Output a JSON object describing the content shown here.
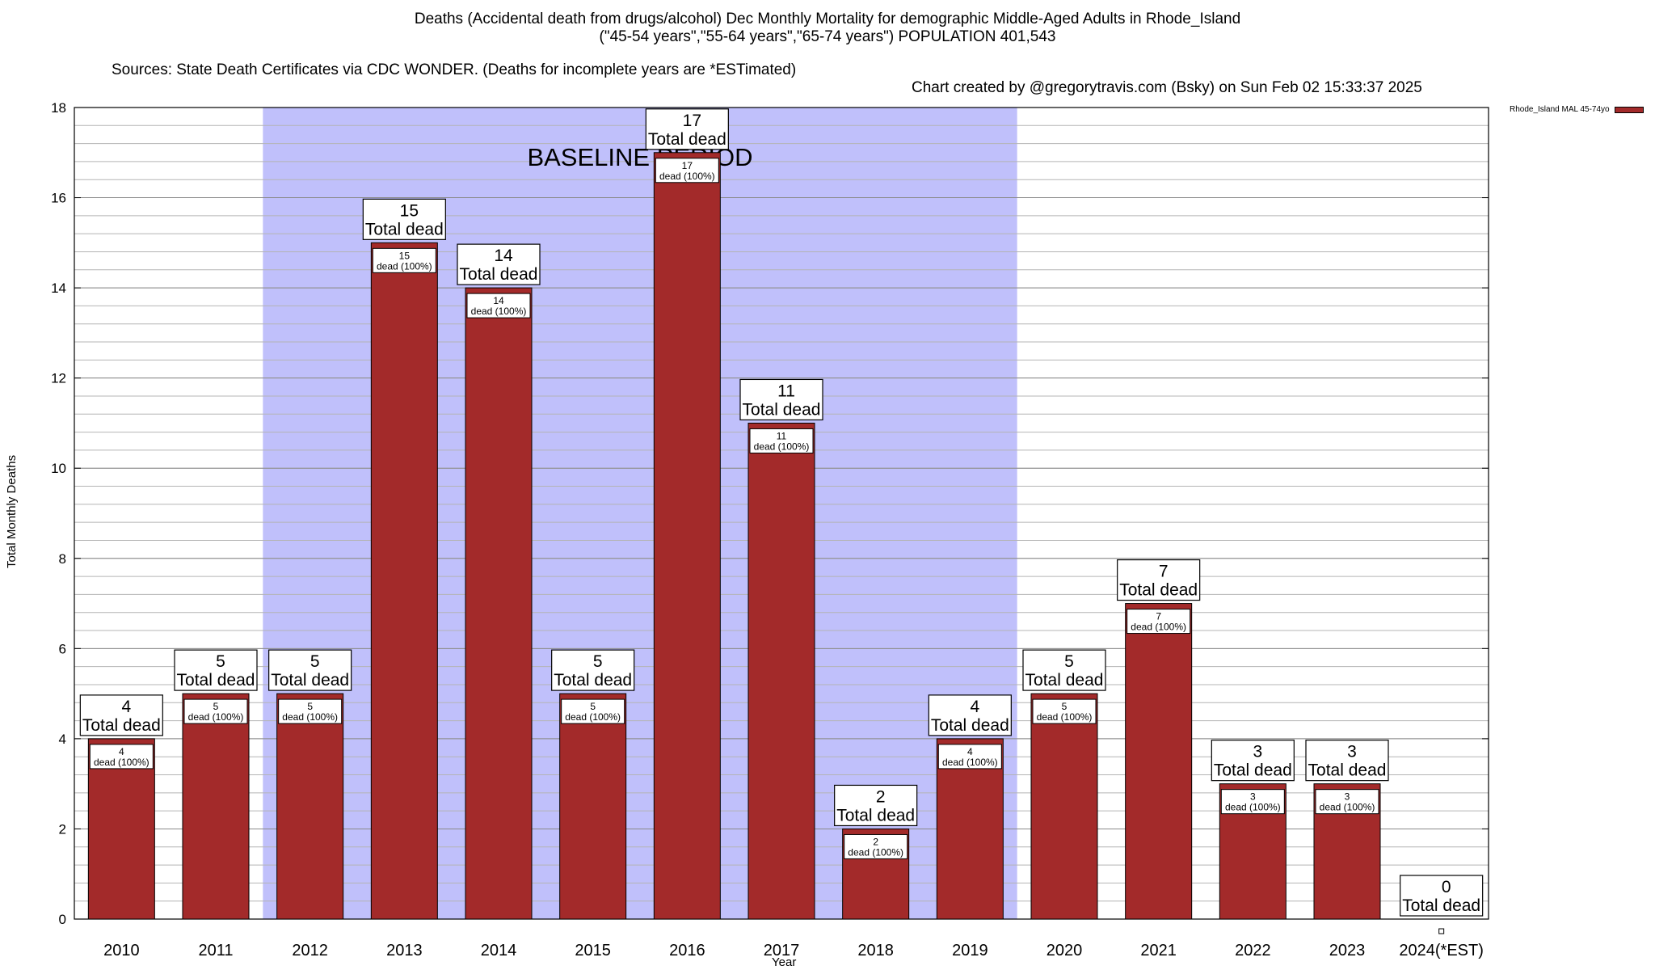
{
  "title": {
    "line1": "Deaths (Accidental death from drugs/alcohol) Dec Monthly Mortality for demographic Middle-Aged Adults in Rhode_Island",
    "line2": "(\"45-54 years\",\"55-64 years\",\"65-74 years\") POPULATION 401,543",
    "sources": "Sources: State Death Certificates via CDC WONDER. (Deaths for incomplete years are *ESTimated)",
    "credit": "Chart created by @gregorytravis.com (Bsky) on Sun Feb 02 15:33:37 2025"
  },
  "chart_data": {
    "type": "bar",
    "xlabel": "Year",
    "ylabel": "Total Monthly Deaths",
    "ylim": [
      0,
      18
    ],
    "y_ticks": [
      0,
      2,
      4,
      6,
      8,
      10,
      12,
      14,
      16,
      18
    ],
    "y_minor_step": 0.4,
    "grid": true,
    "legend_position": "top-right",
    "categories": [
      "2010",
      "2011",
      "2012",
      "2013",
      "2014",
      "2015",
      "2016",
      "2017",
      "2018",
      "2019",
      "2020",
      "2021",
      "2022",
      "2023",
      "2024(*EST)"
    ],
    "series": [
      {
        "name": "Rhode_Island MAL 45-74yo",
        "color": "#a32a2a",
        "values": [
          4,
          5,
          5,
          15,
          14,
          5,
          17,
          11,
          2,
          4,
          5,
          7,
          3,
          3,
          0
        ]
      }
    ],
    "total_label": "Total dead",
    "inner_label": "dead (100%)",
    "baseline": {
      "label": "BASELINE PERIOD",
      "start": "2012",
      "end": "2019",
      "color": "#c0c0fb"
    }
  }
}
